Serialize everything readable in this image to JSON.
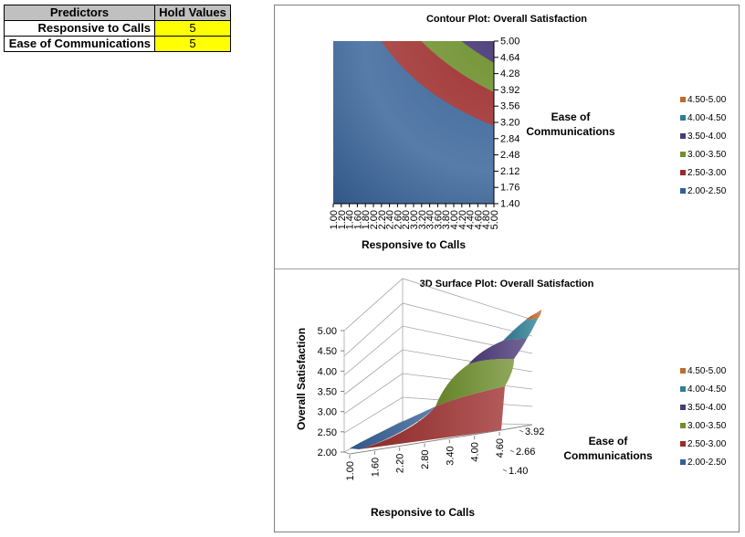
{
  "predictors_table": {
    "headers": [
      "Predictors",
      "Hold Values"
    ],
    "rows": [
      {
        "label": "Responsive to Calls",
        "value": "5"
      },
      {
        "label": "Ease of Communications",
        "value": "5"
      }
    ]
  },
  "chart_data": [
    {
      "type": "contour",
      "title": "Contour Plot: Overall Satisfaction",
      "xlabel": "Responsive to Calls",
      "ylabel": "Ease of\nCommunications",
      "x_ticks": [
        "1.00",
        "1.20",
        "1.40",
        "1.60",
        "1.80",
        "2.00",
        "2.20",
        "2.40",
        "2.60",
        "2.80",
        "3.00",
        "3.20",
        "3.40",
        "3.60",
        "3.80",
        "4.00",
        "4.20",
        "4.40",
        "4.60",
        "4.80",
        "5.00"
      ],
      "y_ticks": [
        "1.40",
        "1.76",
        "2.12",
        "2.48",
        "2.84",
        "3.20",
        "3.56",
        "3.92",
        "4.28",
        "4.64",
        "5.00"
      ],
      "xlim": [
        1.0,
        5.0
      ],
      "ylim": [
        1.4,
        5.0
      ],
      "legend": [
        {
          "label": "4.50-5.00",
          "color": "#c0692d"
        },
        {
          "label": "4.00-4.50",
          "color": "#2e7f96"
        },
        {
          "label": "3.50-4.00",
          "color": "#4b3b79"
        },
        {
          "label": "3.00-3.50",
          "color": "#6f902e"
        },
        {
          "label": "2.50-3.00",
          "color": "#9c2b2b"
        },
        {
          "label": "2.00-2.50",
          "color": "#335f96"
        }
      ],
      "legend_position": "right"
    },
    {
      "type": "surface3d",
      "title": "3D Surface Plot: Overall Satisfaction",
      "xlabel": "Responsive to Calls",
      "ylabel": "Ease of\nCommunications",
      "zlabel": "Overall Satisfaction",
      "x_ticks": [
        "1.00",
        "1.60",
        "2.20",
        "2.80",
        "3.40",
        "4.00",
        "4.60"
      ],
      "y_ticks": [
        "1.40",
        "2.66",
        "3.92"
      ],
      "z_ticks": [
        "2.00",
        "2.50",
        "3.00",
        "3.50",
        "4.00",
        "4.50",
        "5.00"
      ],
      "zlim": [
        2.0,
        5.0
      ],
      "legend": [
        {
          "label": "4.50-5.00",
          "color": "#c0692d"
        },
        {
          "label": "4.00-4.50",
          "color": "#2e7f96"
        },
        {
          "label": "3.50-4.00",
          "color": "#4b3b79"
        },
        {
          "label": "3.00-3.50",
          "color": "#6f902e"
        },
        {
          "label": "2.50-3.00",
          "color": "#9c2b2b"
        },
        {
          "label": "2.00-2.50",
          "color": "#335f96"
        }
      ],
      "legend_position": "right"
    }
  ]
}
